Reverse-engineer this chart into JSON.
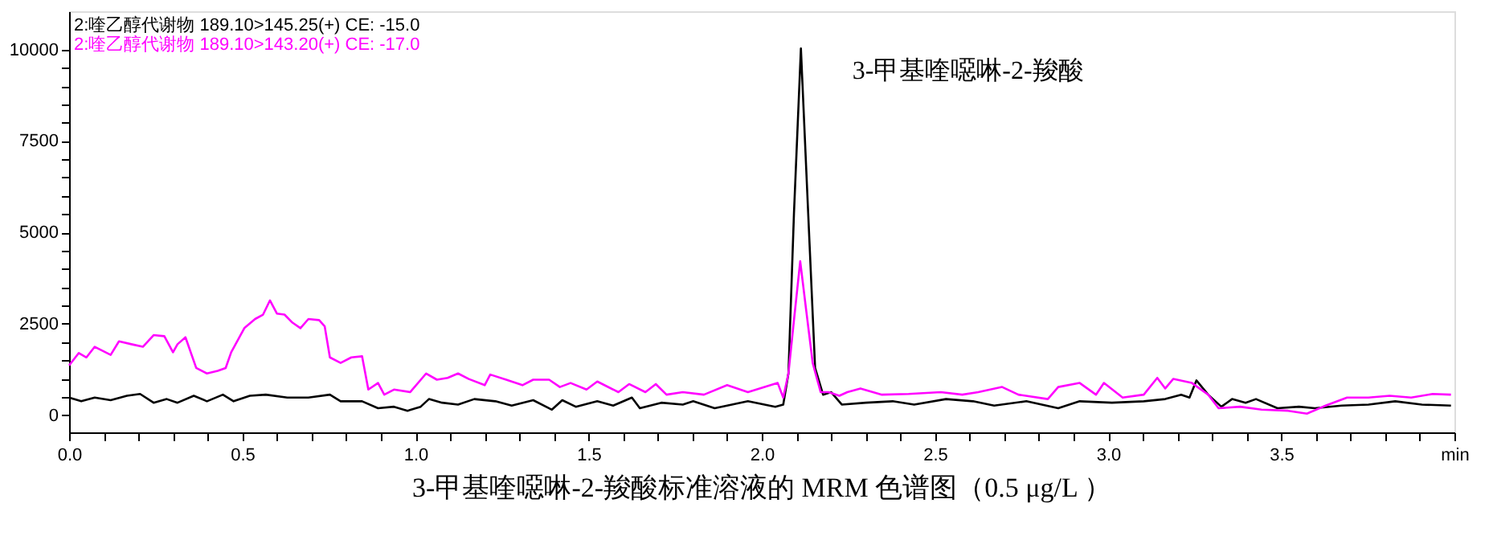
{
  "chart_data": {
    "type": "line",
    "title": "3-甲基喹噁啉-2-羧酸标准溶液的 MRM 色谱图（0.5 μg/L ）",
    "annotations": [
      {
        "text": "3-甲基喹噁啉-2-羧酸",
        "x": 2.113,
        "y": 10030
      }
    ],
    "xlim": [
      0,
      4
    ],
    "ylim": [
      -470,
      11050
    ],
    "xticks": [
      {
        "value": 0,
        "label": "0.0"
      },
      {
        "value": 0.1,
        "label": null
      },
      {
        "value": 0.2,
        "label": null
      },
      {
        "value": 0.3,
        "label": null
      },
      {
        "value": 0.4,
        "label": null
      },
      {
        "value": 0.5,
        "label": "0.5"
      },
      {
        "value": 0.6,
        "label": null
      },
      {
        "value": 0.7,
        "label": null
      },
      {
        "value": 0.8,
        "label": null
      },
      {
        "value": 0.9,
        "label": null
      },
      {
        "value": 1,
        "label": "1.0"
      },
      {
        "value": 1.1,
        "label": null
      },
      {
        "value": 1.2,
        "label": null
      },
      {
        "value": 1.3,
        "label": null
      },
      {
        "value": 1.4,
        "label": null
      },
      {
        "value": 1.5,
        "label": "1.5"
      },
      {
        "value": 1.6,
        "label": null
      },
      {
        "value": 1.7,
        "label": null
      },
      {
        "value": 1.8,
        "label": null
      },
      {
        "value": 1.9,
        "label": null
      },
      {
        "value": 2,
        "label": "2.0"
      },
      {
        "value": 2.1,
        "label": null
      },
      {
        "value": 2.2,
        "label": null
      },
      {
        "value": 2.3,
        "label": null
      },
      {
        "value": 2.4,
        "label": null
      },
      {
        "value": 2.5,
        "label": "2.5"
      },
      {
        "value": 2.6,
        "label": null
      },
      {
        "value": 2.7,
        "label": null
      },
      {
        "value": 2.8,
        "label": null
      },
      {
        "value": 2.9,
        "label": null
      },
      {
        "value": 3,
        "label": "3.0"
      },
      {
        "value": 3.1,
        "label": null
      },
      {
        "value": 3.2,
        "label": null
      },
      {
        "value": 3.3,
        "label": null
      },
      {
        "value": 3.4,
        "label": null
      },
      {
        "value": 3.5,
        "label": "3.5"
      },
      {
        "value": 3.6,
        "label": null
      },
      {
        "value": 3.7,
        "label": null
      },
      {
        "value": 3.8,
        "label": null
      },
      {
        "value": 3.9,
        "label": null
      },
      {
        "value": 4,
        "label": "min"
      }
    ],
    "yticks": [
      0,
      {
        "value": 500,
        "label": null
      },
      {
        "value": 1000,
        "label": null
      },
      {
        "value": 1500,
        "label": null
      },
      {
        "value": 2000,
        "label": null
      },
      2500,
      {
        "value": 3000,
        "label": null
      },
      {
        "value": 3500,
        "label": null
      },
      {
        "value": 4000,
        "label": null
      },
      {
        "value": 4500,
        "label": null
      },
      5000,
      {
        "value": 5500,
        "label": null
      },
      {
        "value": 6000,
        "label": null
      },
      {
        "value": 6500,
        "label": null
      },
      {
        "value": 7000,
        "label": null
      },
      7500,
      {
        "value": 8000,
        "label": null
      },
      {
        "value": 8500,
        "label": null
      },
      {
        "value": 9000,
        "label": null
      },
      {
        "value": 9500,
        "label": null
      },
      10000
    ],
    "grid": false,
    "legend": "top left",
    "marker": "none",
    "line_style": "solid",
    "series": [
      {
        "name": "2:喹乙醇代谢物 189.10>145.25(+) CE: -15.0",
        "color": "#000000",
        "x": [
          0,
          0.035,
          0.074,
          0.12,
          0.167,
          0.205,
          0.244,
          0.282,
          0.313,
          0.36,
          0.398,
          0.444,
          0.475,
          0.522,
          0.568,
          0.63,
          0.691,
          0.753,
          0.784,
          0.846,
          0.892,
          0.938,
          0.977,
          1.015,
          1.039,
          1.077,
          1.123,
          1.17,
          1.231,
          1.278,
          1.34,
          1.394,
          1.424,
          1.463,
          1.525,
          1.571,
          1.625,
          1.648,
          1.71,
          1.772,
          1.802,
          1.864,
          1.9,
          1.96,
          2.039,
          2.062,
          2.077,
          2.093,
          2.113,
          2.134,
          2.154,
          2.177,
          2.2,
          2.231,
          2.301,
          2.378,
          2.44,
          2.532,
          2.61,
          2.671,
          2.764,
          2.856,
          2.918,
          3.011,
          3.103,
          3.165,
          3.211,
          3.235,
          3.255,
          3.289,
          3.327,
          3.358,
          3.397,
          3.427,
          3.489,
          3.551,
          3.597,
          3.674,
          3.752,
          3.829,
          3.906,
          3.99
        ],
        "values": [
          480,
          380,
          480,
          410,
          530,
          580,
          340,
          440,
          340,
          530,
          380,
          560,
          380,
          530,
          560,
          480,
          480,
          560,
          380,
          380,
          190,
          230,
          120,
          230,
          440,
          340,
          290,
          440,
          380,
          260,
          410,
          150,
          410,
          230,
          380,
          260,
          480,
          190,
          340,
          290,
          380,
          190,
          260,
          380,
          230,
          290,
          1140,
          5530,
          10030,
          5530,
          1290,
          560,
          630,
          290,
          340,
          380,
          290,
          440,
          380,
          260,
          380,
          190,
          380,
          340,
          380,
          440,
          560,
          480,
          950,
          560,
          230,
          440,
          340,
          440,
          190,
          230,
          190,
          260,
          290,
          380,
          290,
          260
        ]
      },
      {
        "name": "2:喹乙醇代谢物 189.10>143.20(+) CE: -17.0",
        "color": "#ff00ff",
        "x": [
          0,
          0.028,
          0.05,
          0.074,
          0.12,
          0.144,
          0.18,
          0.213,
          0.244,
          0.275,
          0.3,
          0.313,
          0.336,
          0.367,
          0.398,
          0.429,
          0.452,
          0.468,
          0.506,
          0.537,
          0.56,
          0.58,
          0.6,
          0.622,
          0.645,
          0.668,
          0.691,
          0.722,
          0.738,
          0.753,
          0.784,
          0.815,
          0.846,
          0.864,
          0.892,
          0.91,
          0.938,
          0.985,
          1.031,
          1.062,
          1.093,
          1.123,
          1.154,
          1.2,
          1.216,
          1.262,
          1.309,
          1.34,
          1.386,
          1.417,
          1.448,
          1.494,
          1.525,
          1.586,
          1.617,
          1.664,
          1.694,
          1.725,
          1.772,
          1.833,
          1.9,
          1.96,
          2.046,
          2.062,
          2.077,
          2.093,
          2.111,
          2.128,
          2.147,
          2.17,
          2.193,
          2.224,
          2.247,
          2.285,
          2.347,
          2.424,
          2.517,
          2.579,
          2.625,
          2.694,
          2.741,
          2.826,
          2.856,
          2.918,
          2.965,
          2.988,
          3.042,
          3.103,
          3.142,
          3.165,
          3.188,
          3.242,
          3.289,
          3.319,
          3.381,
          3.443,
          3.52,
          3.574,
          3.628,
          3.69,
          3.752,
          3.813,
          3.875,
          3.937,
          3.99
        ],
        "values": [
          1360,
          1700,
          1580,
          1870,
          1650,
          2020,
          1940,
          1870,
          2190,
          2160,
          1720,
          1940,
          2130,
          1290,
          1140,
          1210,
          1290,
          1720,
          2380,
          2630,
          2750,
          3140,
          2780,
          2750,
          2530,
          2380,
          2630,
          2600,
          2430,
          1580,
          1430,
          1580,
          1610,
          700,
          880,
          560,
          700,
          630,
          1140,
          970,
          1020,
          1140,
          990,
          820,
          1110,
          970,
          820,
          970,
          970,
          770,
          880,
          700,
          920,
          630,
          850,
          630,
          850,
          560,
          630,
          560,
          820,
          630,
          880,
          480,
          1140,
          2600,
          4210,
          2890,
          1430,
          630,
          630,
          530,
          630,
          730,
          560,
          580,
          630,
          560,
          630,
          770,
          560,
          440,
          770,
          880,
          560,
          880,
          480,
          560,
          1020,
          730,
          990,
          880,
          560,
          190,
          230,
          150,
          120,
          40,
          260,
          480,
          480,
          530,
          480,
          580,
          560
        ]
      }
    ]
  }
}
